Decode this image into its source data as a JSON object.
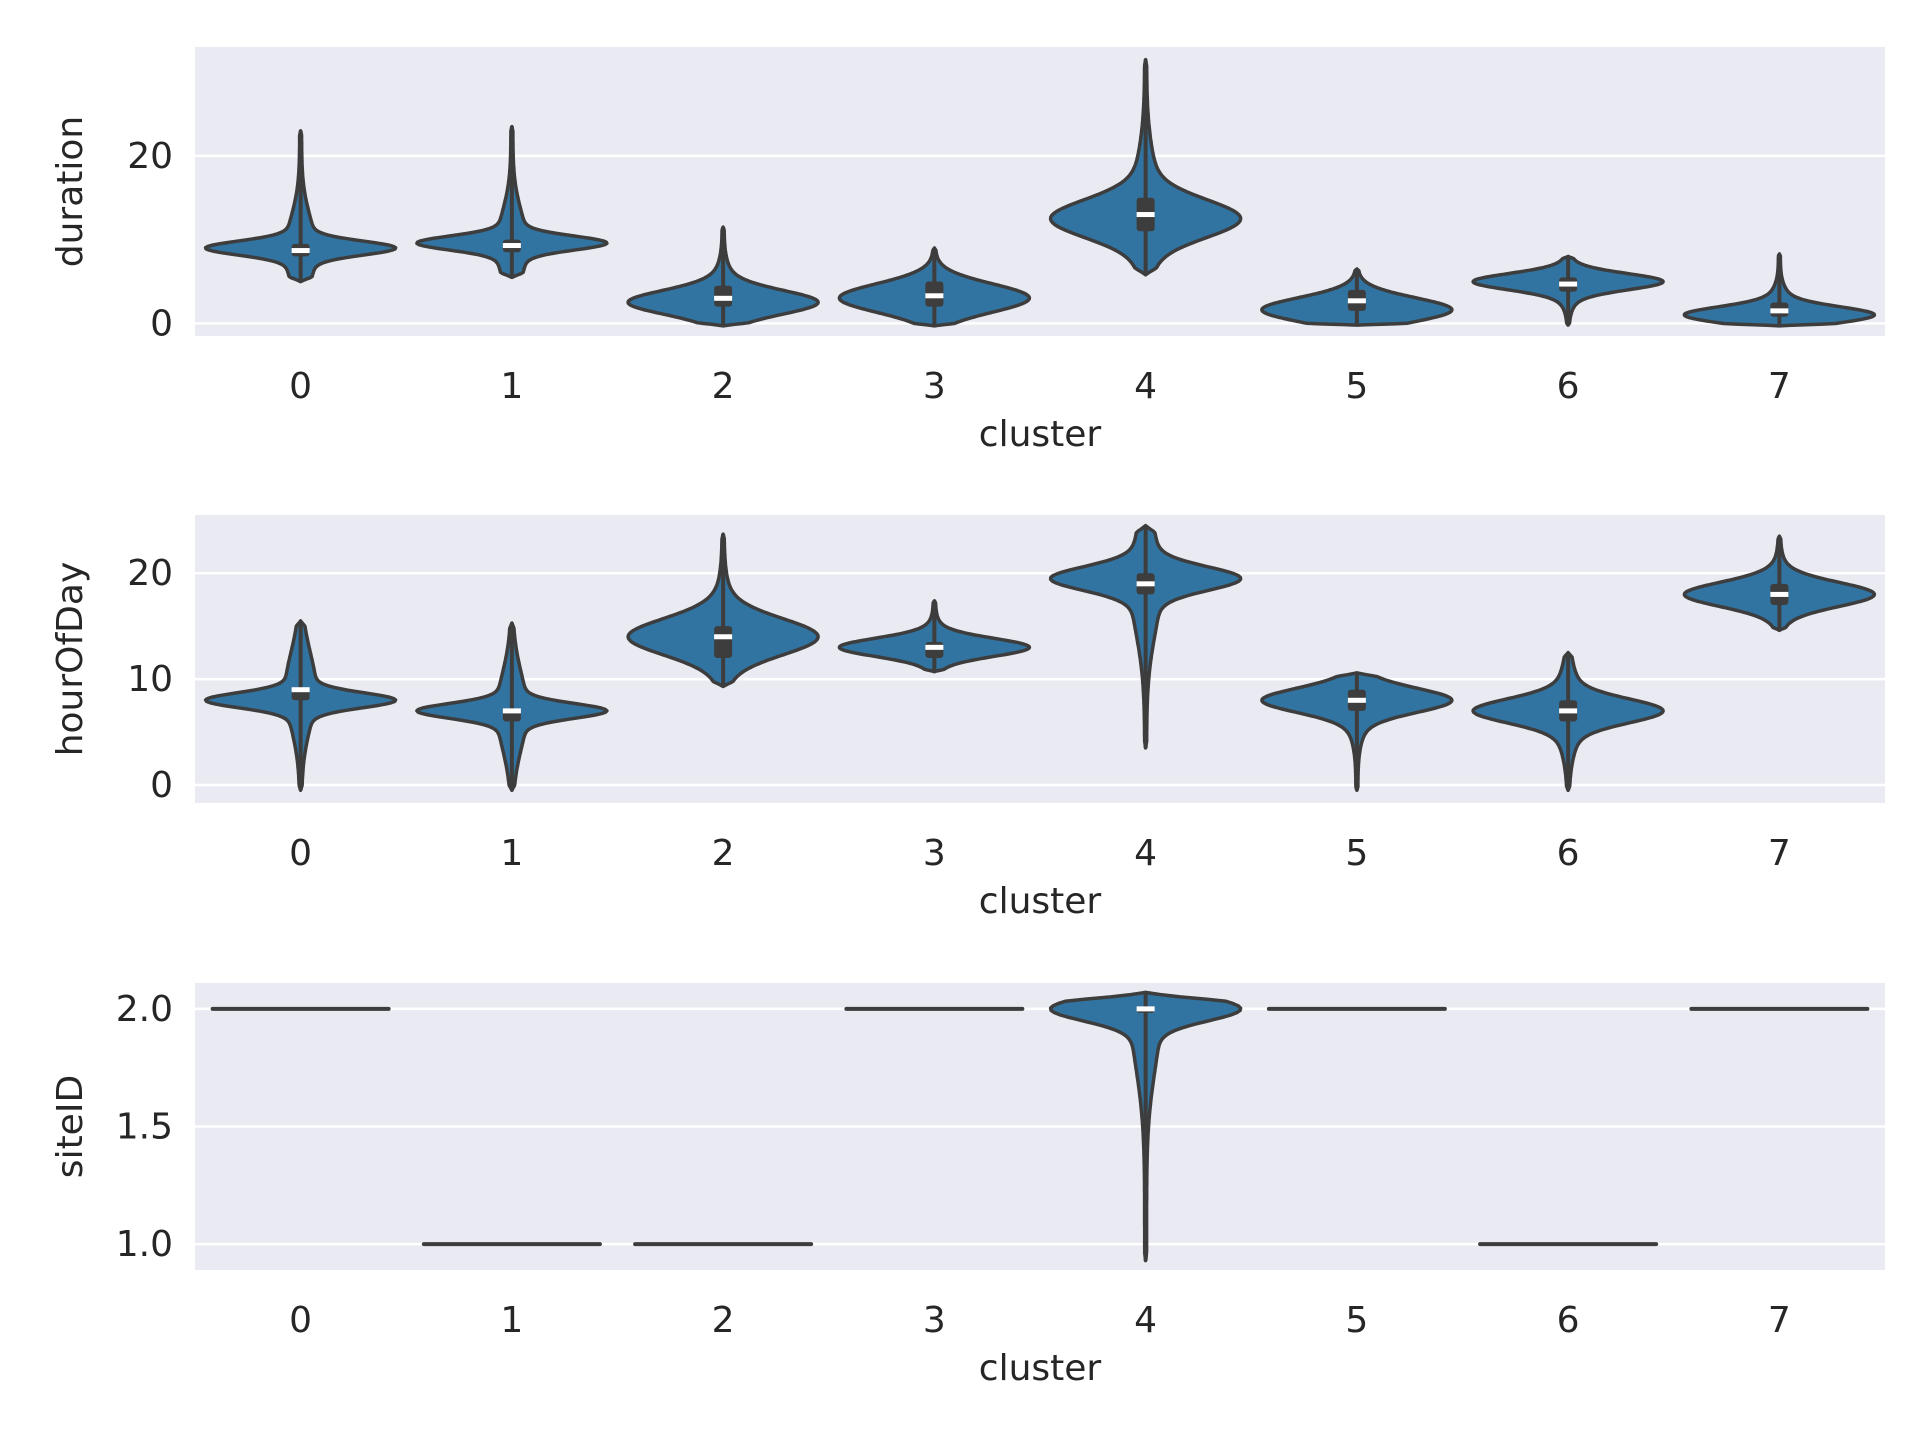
{
  "chart_data": [
    {
      "type": "violin",
      "xlabel": "cluster",
      "ylabel": "duration",
      "categories": [
        "0",
        "1",
        "2",
        "3",
        "4",
        "5",
        "6",
        "7"
      ],
      "ylim": [
        -1.5,
        33
      ],
      "yticks": [
        0,
        20
      ],
      "ytick_labels": [
        "0",
        "20"
      ],
      "grid": true,
      "color": "#3274a1",
      "violins": [
        {
          "cluster": "0",
          "min": 5,
          "max": 23,
          "q1": 8,
          "median": 8.7,
          "q3": 9.5,
          "mode": 9
        },
        {
          "cluster": "1",
          "min": 5.5,
          "max": 23.5,
          "q1": 8.5,
          "median": 9.3,
          "q3": 10,
          "mode": 9.6
        },
        {
          "cluster": "2",
          "min": -0.3,
          "max": 11.5,
          "q1": 2,
          "median": 3,
          "q3": 4.5,
          "mode": 2.5
        },
        {
          "cluster": "3",
          "min": -0.3,
          "max": 9,
          "q1": 2,
          "median": 3.3,
          "q3": 5,
          "mode": 3
        },
        {
          "cluster": "4",
          "min": 5.8,
          "max": 31.5,
          "q1": 11,
          "median": 13,
          "q3": 15,
          "mode": 12.5
        },
        {
          "cluster": "5",
          "min": -0.2,
          "max": 6.5,
          "q1": 1.5,
          "median": 2.7,
          "q3": 4,
          "mode": 1.5
        },
        {
          "cluster": "6",
          "min": -0.2,
          "max": 8,
          "q1": 3.8,
          "median": 4.7,
          "q3": 5.5,
          "mode": 5
        },
        {
          "cluster": "7",
          "min": -0.3,
          "max": 8.3,
          "q1": 0.8,
          "median": 1.5,
          "q3": 2.5,
          "mode": 1
        }
      ]
    },
    {
      "type": "violin",
      "xlabel": "cluster",
      "ylabel": "hourOfDay",
      "categories": [
        "0",
        "1",
        "2",
        "3",
        "4",
        "5",
        "6",
        "7"
      ],
      "ylim": [
        -1.7,
        25.5
      ],
      "yticks": [
        0,
        10,
        20
      ],
      "ytick_labels": [
        "0",
        "10",
        "20"
      ],
      "grid": true,
      "color": "#3274a1",
      "violins": [
        {
          "cluster": "0",
          "min": -0.5,
          "max": 15.5,
          "q1": 8,
          "median": 9,
          "q3": 9,
          "mode": 8
        },
        {
          "cluster": "1",
          "min": -0.5,
          "max": 15.3,
          "q1": 6,
          "median": 7,
          "q3": 7,
          "mode": 7
        },
        {
          "cluster": "2",
          "min": 9.3,
          "max": 23.7,
          "q1": 12,
          "median": 14,
          "q3": 15,
          "mode": 14
        },
        {
          "cluster": "3",
          "min": 10.7,
          "max": 17.4,
          "q1": 12,
          "median": 13,
          "q3": 13.5,
          "mode": 13
        },
        {
          "cluster": "4",
          "min": 3.5,
          "max": 24.5,
          "q1": 18,
          "median": 19,
          "q3": 20,
          "mode": 19.5
        },
        {
          "cluster": "5",
          "min": -0.5,
          "max": 10.6,
          "q1": 7,
          "median": 8,
          "q3": 9,
          "mode": 8
        },
        {
          "cluster": "6",
          "min": -0.5,
          "max": 12.5,
          "q1": 6,
          "median": 7,
          "q3": 8,
          "mode": 7
        },
        {
          "cluster": "7",
          "min": 14.6,
          "max": 23.5,
          "q1": 17,
          "median": 18,
          "q3": 19,
          "mode": 18
        }
      ]
    },
    {
      "type": "violin",
      "xlabel": "cluster",
      "ylabel": "siteID",
      "categories": [
        "0",
        "1",
        "2",
        "3",
        "4",
        "5",
        "6",
        "7"
      ],
      "ylim": [
        0.89,
        2.11
      ],
      "yticks": [
        1.0,
        1.5,
        2.0
      ],
      "ytick_labels": [
        "1.0",
        "1.5",
        "2.0"
      ],
      "grid": true,
      "color": "#3274a1",
      "violins": [
        {
          "cluster": "0",
          "constant": 2.0
        },
        {
          "cluster": "1",
          "constant": 1.0
        },
        {
          "cluster": "2",
          "constant": 1.0
        },
        {
          "cluster": "3",
          "constant": 2.0
        },
        {
          "cluster": "4",
          "min": 0.93,
          "max": 2.07,
          "q1": 2.0,
          "median": 2.0,
          "q3": 2.0,
          "mode": 2.0
        },
        {
          "cluster": "5",
          "constant": 2.0
        },
        {
          "cluster": "6",
          "constant": 1.0
        },
        {
          "cluster": "7",
          "constant": 2.0
        }
      ]
    }
  ]
}
